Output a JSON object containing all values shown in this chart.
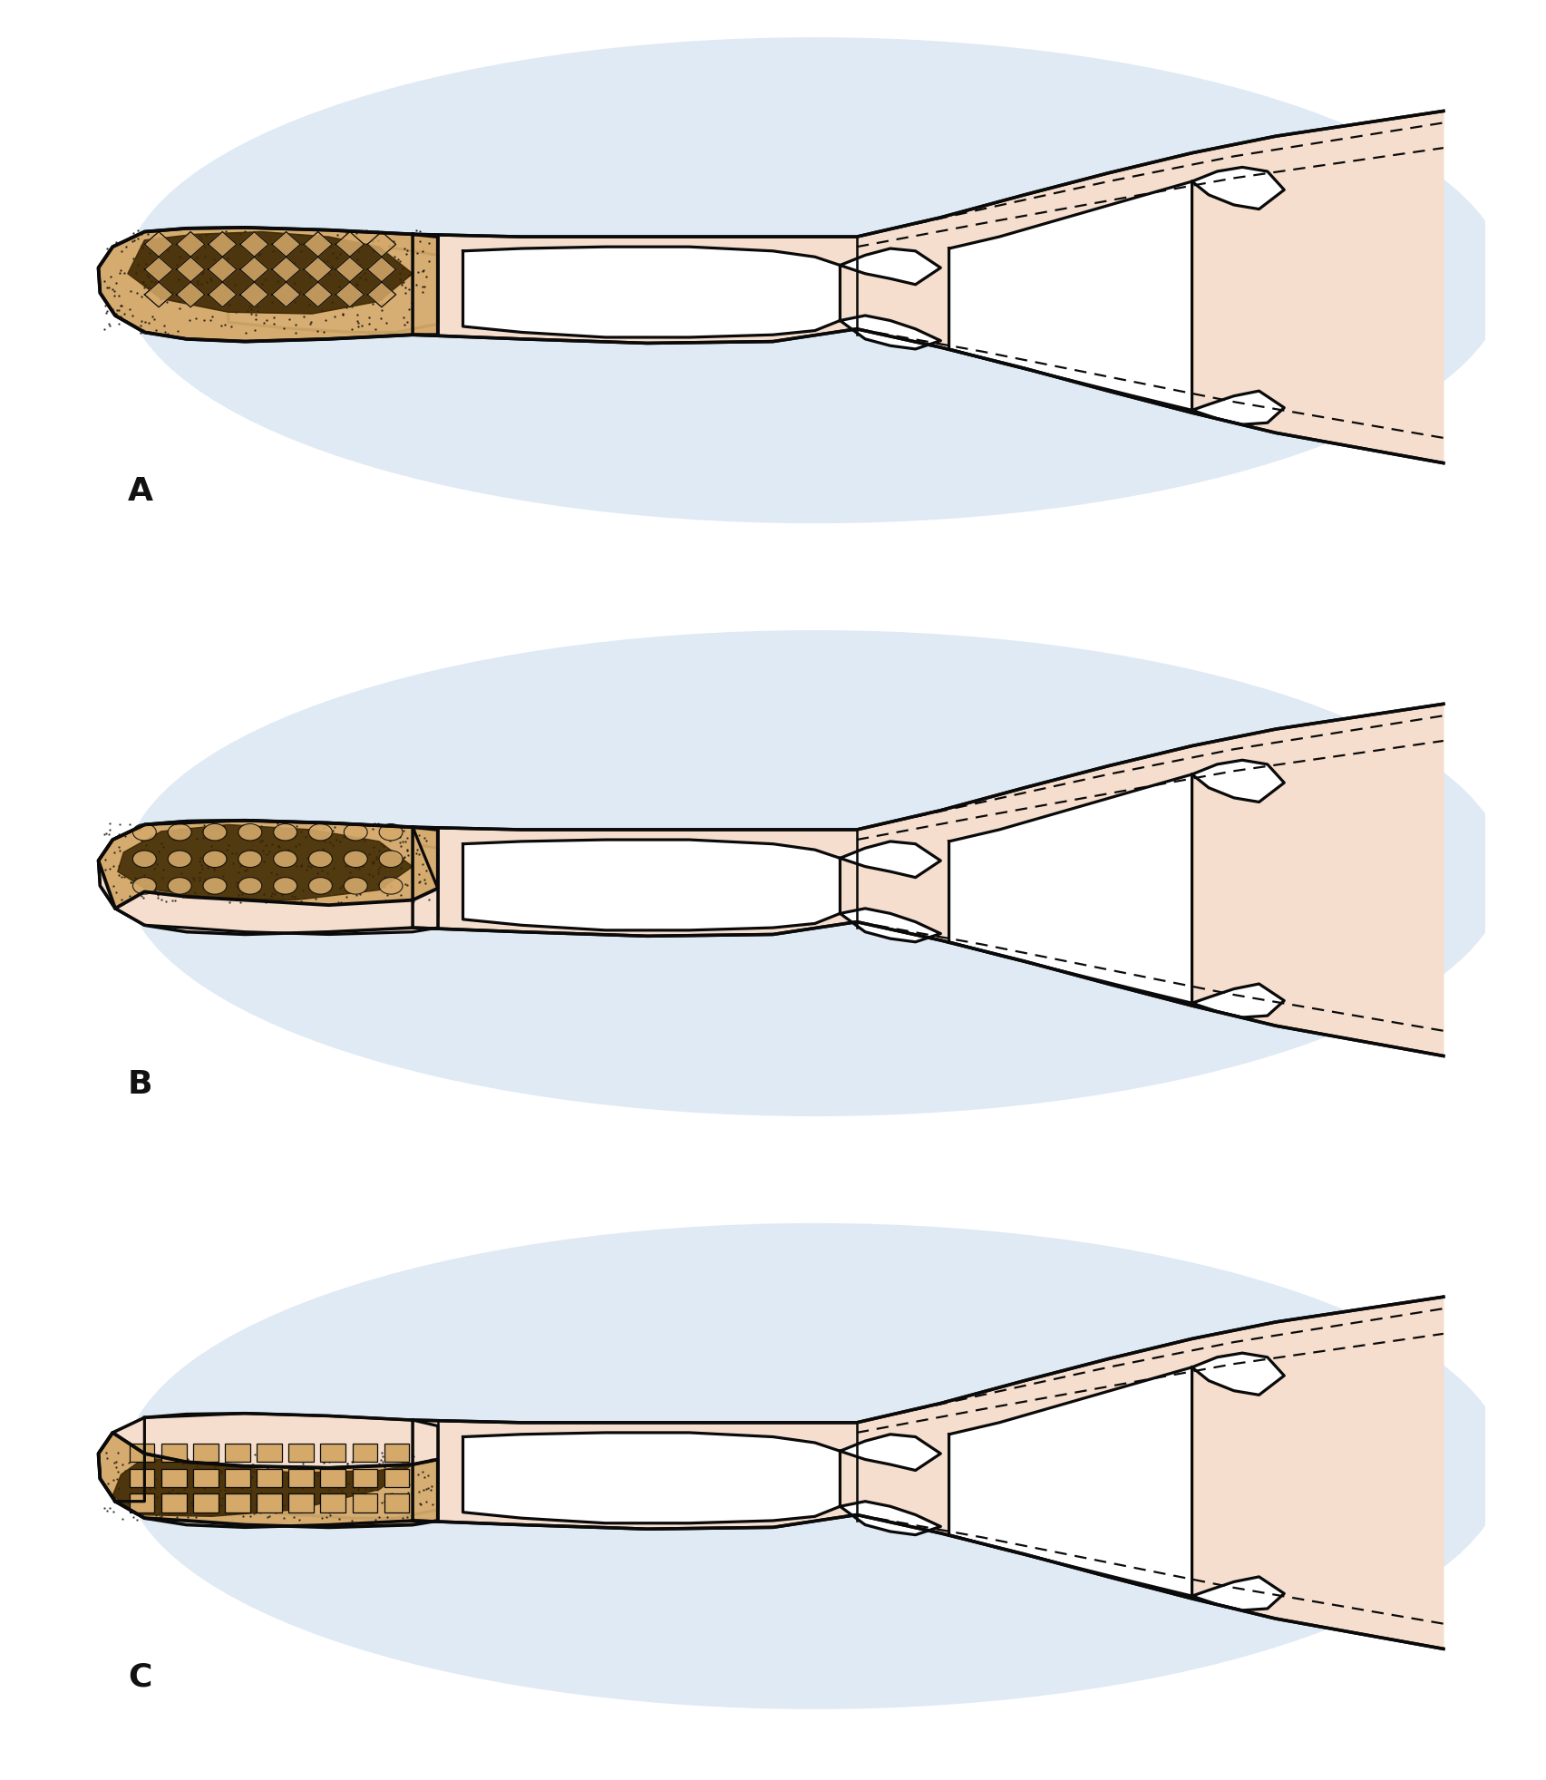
{
  "bg_color": "#ffffff",
  "glow_color": "#c5d9ec",
  "skin_color": "#f5dece",
  "bone_color": "#ffffff",
  "tumor_color": "#d4a96a",
  "tumor_dark_color": "#3a2500",
  "line_color": "#0a0a0a",
  "label_color": "#111111",
  "labels": [
    "A",
    "B",
    "C"
  ],
  "label_fontsize": 26,
  "figsize": [
    17.05,
    19.63
  ],
  "dpi": 100,
  "n_panels": 3
}
